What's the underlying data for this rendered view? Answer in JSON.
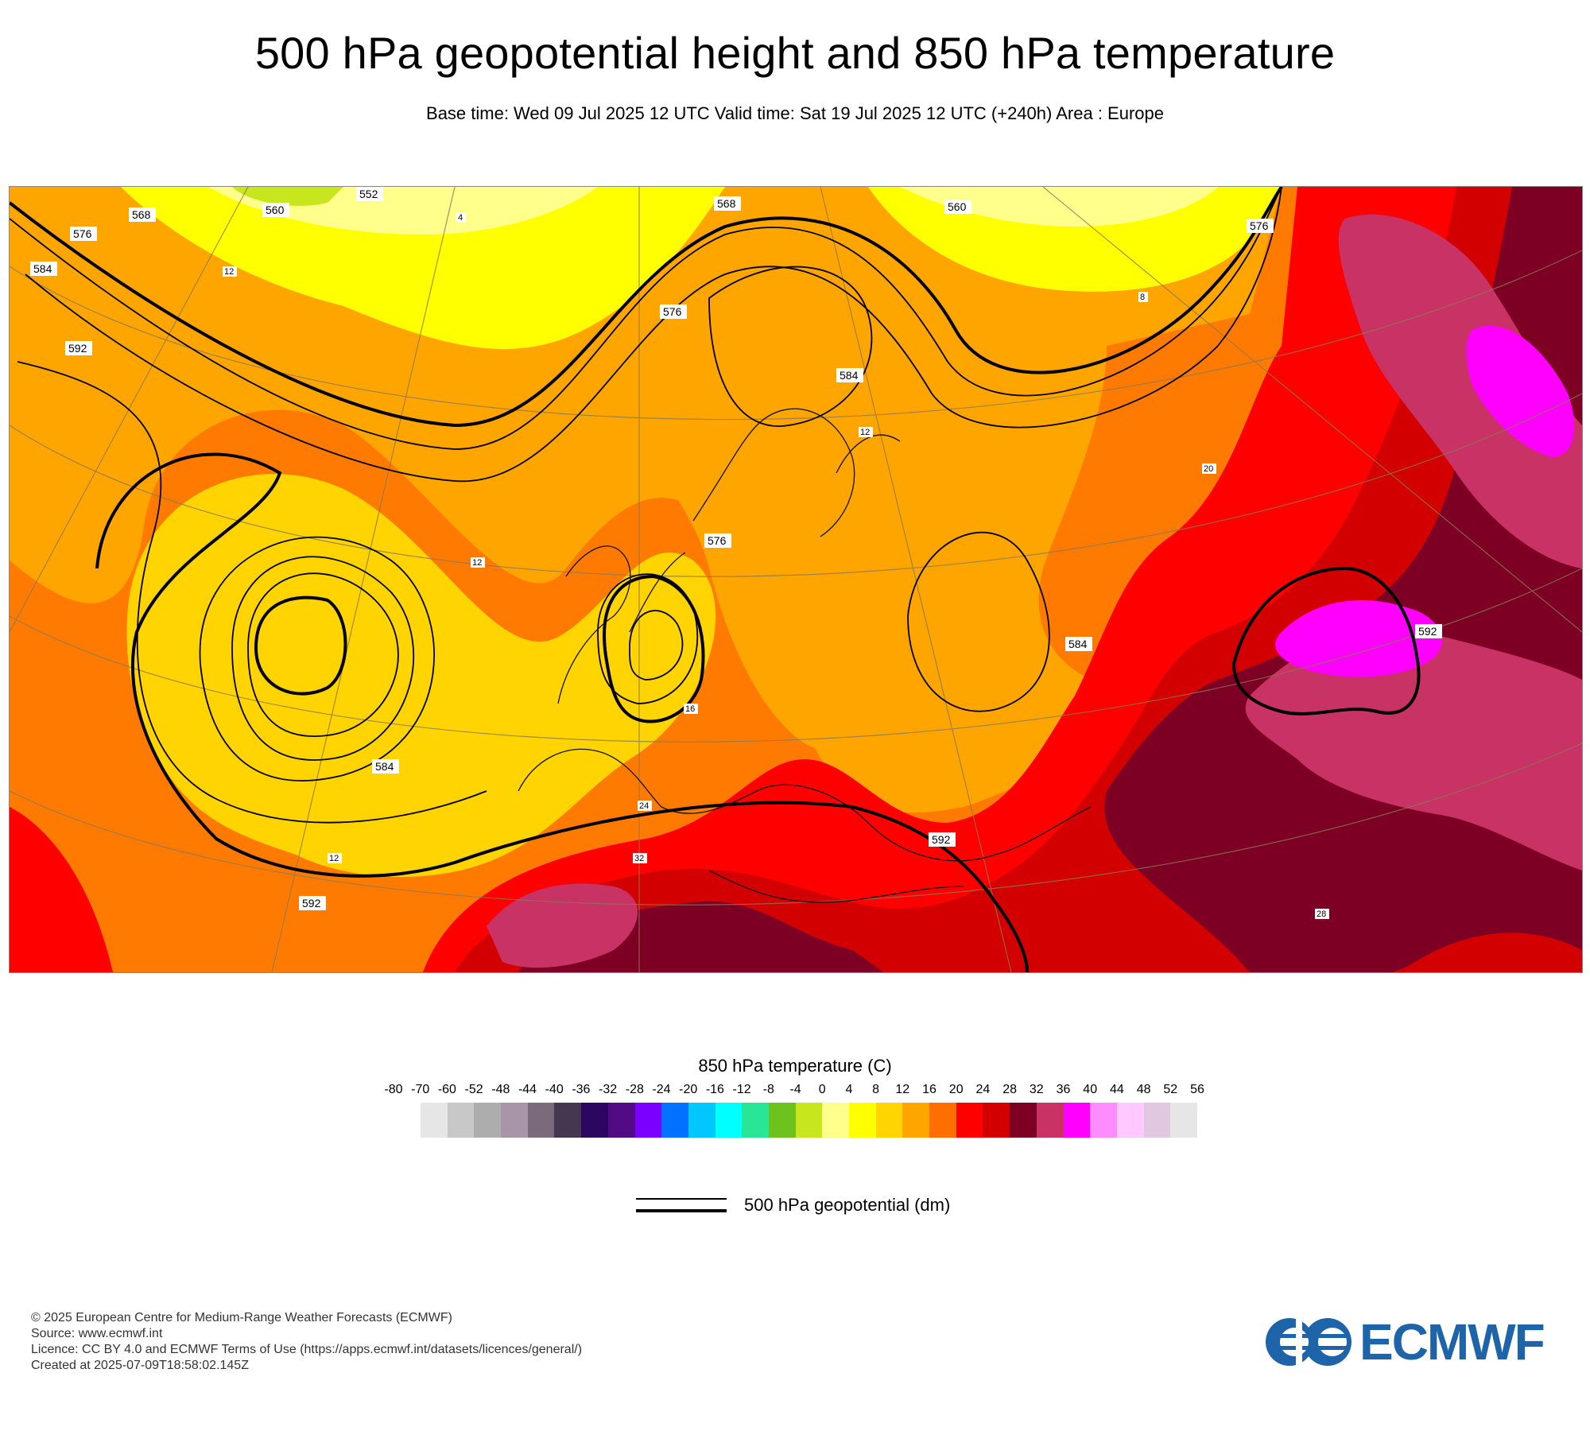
{
  "header": {
    "title": "500 hPa geopotential height and 850 hPa temperature",
    "subtitle": "Base time: Wed 09 Jul 2025 12 UTC Valid time: Sat 19 Jul 2025 12 UTC (+240h) Area : Europe"
  },
  "map": {
    "contour_labels_dm": [
      "552",
      "560",
      "560",
      "568",
      "568",
      "576",
      "576",
      "576",
      "584",
      "584",
      "584",
      "592",
      "592",
      "592",
      "592",
      "576",
      "584"
    ],
    "temperature_labels": [
      "12",
      "12",
      "12",
      "16",
      "20",
      "24",
      "28",
      "32",
      "4",
      "8",
      "12"
    ]
  },
  "legend": {
    "temperature_title": "850 hPa temperature (C)",
    "ticks": [
      "-80",
      "-70",
      "-60",
      "-52",
      "-48",
      "-44",
      "-40",
      "-36",
      "-32",
      "-28",
      "-24",
      "-20",
      "-16",
      "-12",
      "-8",
      "-4",
      "0",
      "4",
      "8",
      "12",
      "16",
      "20",
      "24",
      "28",
      "32",
      "36",
      "40",
      "44",
      "48",
      "52",
      "56"
    ],
    "colors": [
      "#e6e6e6",
      "#c8c8c8",
      "#adadad",
      "#a896a8",
      "#7b6a7b",
      "#45374f",
      "#2c0761",
      "#520a85",
      "#7a00ff",
      "#0072ff",
      "#00c8ff",
      "#00ffff",
      "#28e696",
      "#6dc21e",
      "#c8e61e",
      "#ffff8c",
      "#ffff00",
      "#ffd400",
      "#ffa500",
      "#ff6e00",
      "#ff0000",
      "#d20000",
      "#7d0024",
      "#c83264",
      "#ff00ff",
      "#ff8cff",
      "#ffc8ff",
      "#e1c8e1",
      "#e6e6e6"
    ],
    "geopotential_label": "500 hPa geopotential (dm)"
  },
  "footer": {
    "line1": "© 2025 European Centre for Medium-Range Weather Forecasts (ECMWF)",
    "line2": "Source: www.ecmwf.int",
    "line3": "Licence: CC BY 4.0 and ECMWF Terms of Use (https://apps.ecmwf.int/datasets/licences/general/)",
    "line4": "Created at 2025-07-09T18:58:02.145Z",
    "logo_text": "ECMWF"
  }
}
